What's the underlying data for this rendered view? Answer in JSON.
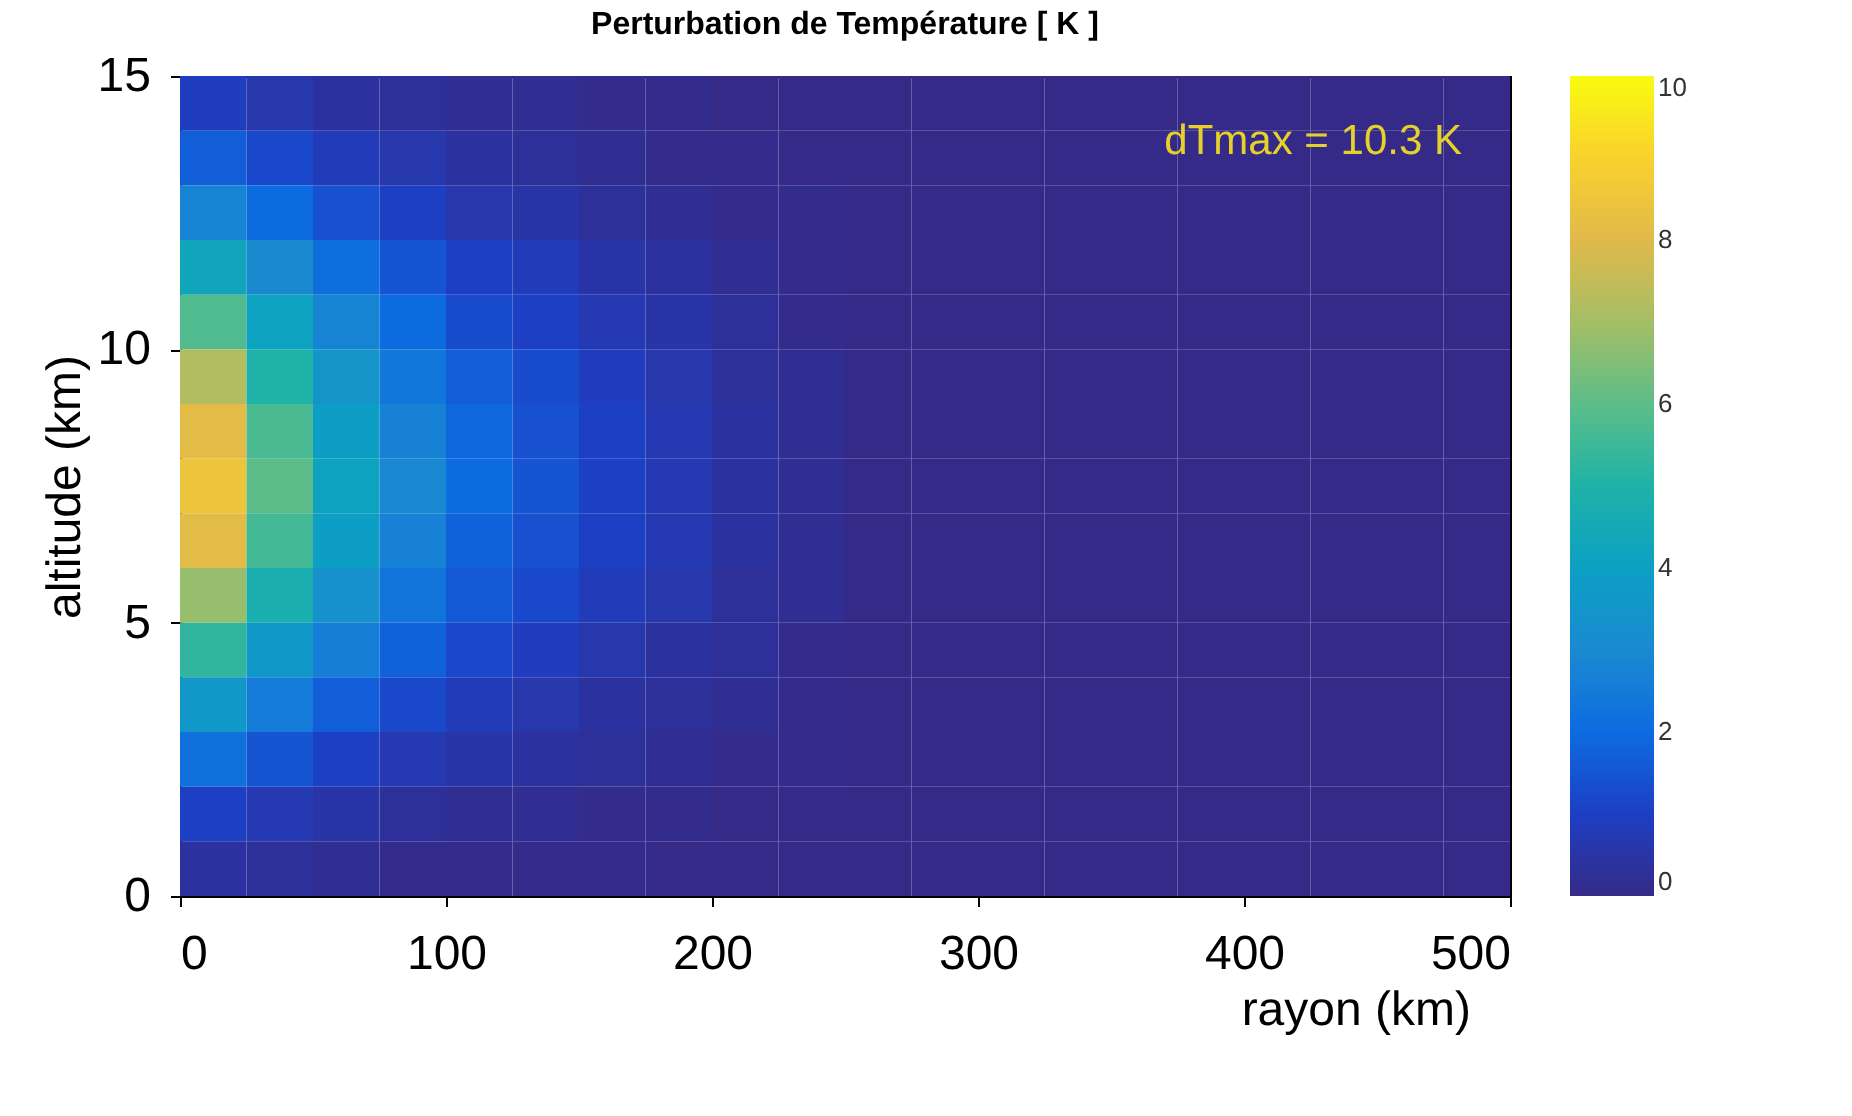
{
  "chart_data": {
    "type": "heatmap",
    "title": "Perturbation de Température [ K ]",
    "xlabel": "rayon (km)",
    "ylabel": "altitude (km)",
    "x": [
      12.5,
      37.5,
      62.5,
      87.5,
      112.5,
      137.5,
      162.5,
      187.5,
      212.5,
      237.5,
      262.5,
      287.5,
      312.5,
      337.5,
      362.5,
      387.5,
      412.5,
      437.5,
      462.5,
      487.5
    ],
    "y": [
      14.5,
      13.5,
      12.5,
      11.5,
      10.5,
      9.5,
      8.5,
      7.5,
      6.5,
      5.5,
      4.5,
      3.5,
      2.5,
      1.5,
      0.5
    ],
    "cells": [
      [
        0.9,
        0.6,
        0.4,
        0.3,
        0.2,
        0.2,
        0.1,
        0.1,
        0,
        0,
        0,
        0,
        0,
        0,
        0,
        0,
        0,
        0,
        0,
        0
      ],
      [
        1.7,
        1.2,
        0.8,
        0.6,
        0.4,
        0.3,
        0.2,
        0.1,
        0.1,
        0,
        0,
        0,
        0,
        0,
        0,
        0,
        0,
        0,
        0,
        0
      ],
      [
        2.8,
        2.0,
        1.4,
        1.0,
        0.6,
        0.5,
        0.3,
        0.2,
        0.1,
        0.1,
        0,
        0,
        0,
        0,
        0,
        0,
        0,
        0,
        0,
        0
      ],
      [
        4.3,
        3.0,
        2.1,
        1.5,
        1.0,
        0.8,
        0.5,
        0.4,
        0.2,
        0.1,
        0,
        0,
        0,
        0,
        0,
        0,
        0,
        0,
        0,
        0
      ],
      [
        5.8,
        4.1,
        2.8,
        2.0,
        1.3,
        1.0,
        0.7,
        0.5,
        0.3,
        0.1,
        0,
        0,
        0,
        0,
        0,
        0,
        0,
        0,
        0,
        0
      ],
      [
        7.2,
        5.0,
        3.5,
        2.4,
        1.7,
        1.3,
        0.9,
        0.6,
        0.3,
        0.2,
        0,
        0,
        0,
        0,
        0,
        0,
        0,
        0,
        0,
        0
      ],
      [
        8.1,
        5.7,
        3.9,
        2.7,
        1.9,
        1.4,
        1.0,
        0.7,
        0.4,
        0.2,
        0,
        0,
        0,
        0,
        0,
        0,
        0,
        0,
        0,
        0
      ],
      [
        8.5,
        6.0,
        4.1,
        2.9,
        2.0,
        1.5,
        1.0,
        0.7,
        0.4,
        0.2,
        0,
        0,
        0,
        0,
        0,
        0,
        0,
        0,
        0,
        0
      ],
      [
        8.1,
        5.6,
        3.9,
        2.7,
        1.8,
        1.4,
        1.0,
        0.7,
        0.4,
        0.2,
        0,
        0,
        0,
        0,
        0,
        0,
        0,
        0,
        0,
        0
      ],
      [
        6.8,
        4.8,
        3.3,
        2.3,
        1.6,
        1.2,
        0.8,
        0.6,
        0.3,
        0.2,
        0,
        0,
        0,
        0,
        0,
        0,
        0,
        0,
        0,
        0
      ],
      [
        5.3,
        3.7,
        2.6,
        1.8,
        1.2,
        0.9,
        0.6,
        0.4,
        0.3,
        0.1,
        0,
        0,
        0,
        0,
        0,
        0,
        0,
        0,
        0,
        0
      ],
      [
        3.6,
        2.5,
        1.7,
        1.2,
        0.8,
        0.6,
        0.4,
        0.3,
        0.2,
        0.1,
        0,
        0,
        0,
        0,
        0,
        0,
        0,
        0,
        0,
        0
      ],
      [
        2.2,
        1.5,
        1.0,
        0.7,
        0.5,
        0.4,
        0.3,
        0.2,
        0.1,
        0.1,
        0,
        0,
        0,
        0,
        0,
        0,
        0,
        0,
        0,
        0
      ],
      [
        1.0,
        0.7,
        0.5,
        0.3,
        0.2,
        0.2,
        0.1,
        0.1,
        0,
        0,
        0,
        0,
        0,
        0,
        0,
        0,
        0,
        0,
        0,
        0
      ],
      [
        0.4,
        0.3,
        0.2,
        0.1,
        0.1,
        0.1,
        0.1,
        0,
        0,
        0,
        0,
        0,
        0,
        0,
        0,
        0,
        0,
        0,
        0,
        0
      ]
    ],
    "clim": [
      0,
      10
    ],
    "cticks": [
      0,
      2,
      4,
      6,
      8,
      10
    ],
    "xlim": [
      0,
      500
    ],
    "xticks": [
      0,
      100,
      200,
      300,
      400,
      500
    ],
    "ylim": [
      0,
      15
    ],
    "yticks": [
      0,
      5,
      10,
      15
    ],
    "annotations": [
      "dTmax = 10.3 K"
    ]
  }
}
